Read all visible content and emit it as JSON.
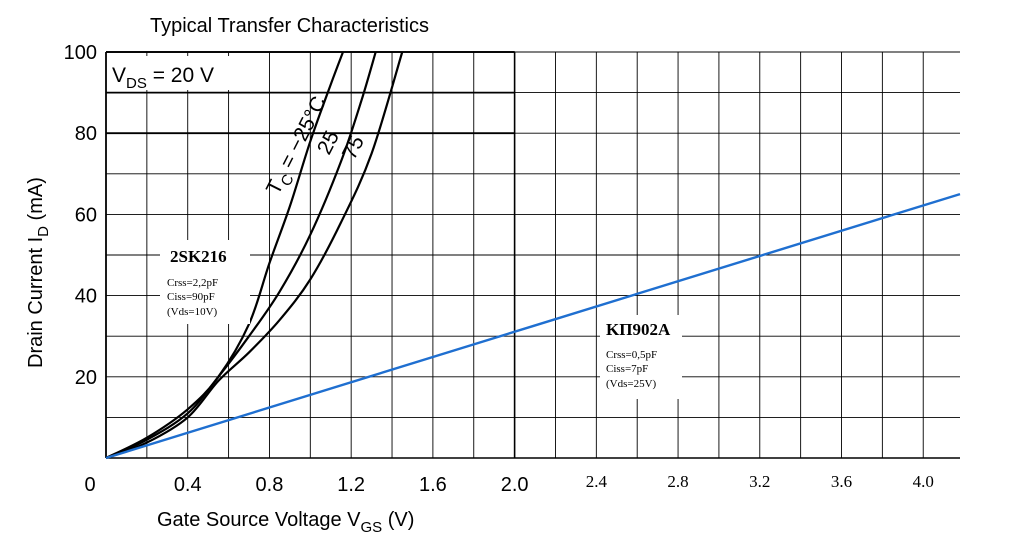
{
  "chart_data": {
    "type": "line",
    "title": "Typical Transfer Characteristics",
    "xlabel": {
      "main": "Gate Source Voltage  V",
      "sub": "GS",
      "unit": "  (V)"
    },
    "ylabel": {
      "main": "Drain Current  I",
      "sub": "D",
      "unit": "  (mA)"
    },
    "xlim": [
      0,
      4.18
    ],
    "ylim": [
      0,
      100
    ],
    "grid": true,
    "x_ticks": [
      "0",
      "0.4",
      "0.8",
      "1.2",
      "1.6",
      "2.0",
      "2.4",
      "2.8",
      "3.2",
      "3.6",
      "4.0"
    ],
    "y_ticks": [
      "100",
      "80",
      "60",
      "40",
      "20"
    ],
    "condition": {
      "main": "V",
      "sub": "DS",
      "rest": " = 20 V"
    },
    "curve_label": {
      "main": "T",
      "sub": "C",
      "rest": " = −25°C"
    },
    "series": [
      {
        "name": "−25°C",
        "color": "#000000",
        "points": [
          [
            0,
            0
          ],
          [
            0.2,
            5
          ],
          [
            0.4,
            12
          ],
          [
            0.55,
            20
          ],
          [
            0.7,
            33
          ],
          [
            0.8,
            48
          ],
          [
            0.9,
            62
          ],
          [
            1.0,
            78
          ],
          [
            1.1,
            92
          ],
          [
            1.16,
            100
          ]
        ]
      },
      {
        "name": "25",
        "color": "#000000",
        "points": [
          [
            0,
            0
          ],
          [
            0.2,
            4.5
          ],
          [
            0.4,
            11
          ],
          [
            0.55,
            20
          ],
          [
            0.7,
            30
          ],
          [
            0.85,
            41
          ],
          [
            1.0,
            55
          ],
          [
            1.15,
            73
          ],
          [
            1.25,
            88
          ],
          [
            1.32,
            100
          ]
        ]
      },
      {
        "name": "75",
        "color": "#000000",
        "points": [
          [
            0,
            0
          ],
          [
            0.2,
            3.8
          ],
          [
            0.4,
            10
          ],
          [
            0.55,
            19
          ],
          [
            0.7,
            26
          ],
          [
            0.85,
            34
          ],
          [
            1.0,
            44
          ],
          [
            1.15,
            58
          ],
          [
            1.3,
            75
          ],
          [
            1.45,
            100
          ]
        ]
      },
      {
        "name": "KП902A",
        "color": "#1f6fd0",
        "points": [
          [
            0,
            0
          ],
          [
            4.18,
            65
          ]
        ]
      }
    ],
    "annotations": [
      {
        "title": "2SK216",
        "lines": [
          "Crss=2,2pF",
          "Ciss=90pF",
          "(Vds=10V)"
        ]
      },
      {
        "title": "KП902A",
        "lines": [
          "Crss=0,5pF",
          "Ciss=7pF",
          "(Vds=25V)"
        ]
      }
    ],
    "temp_labels": [
      "25",
      "75"
    ]
  }
}
